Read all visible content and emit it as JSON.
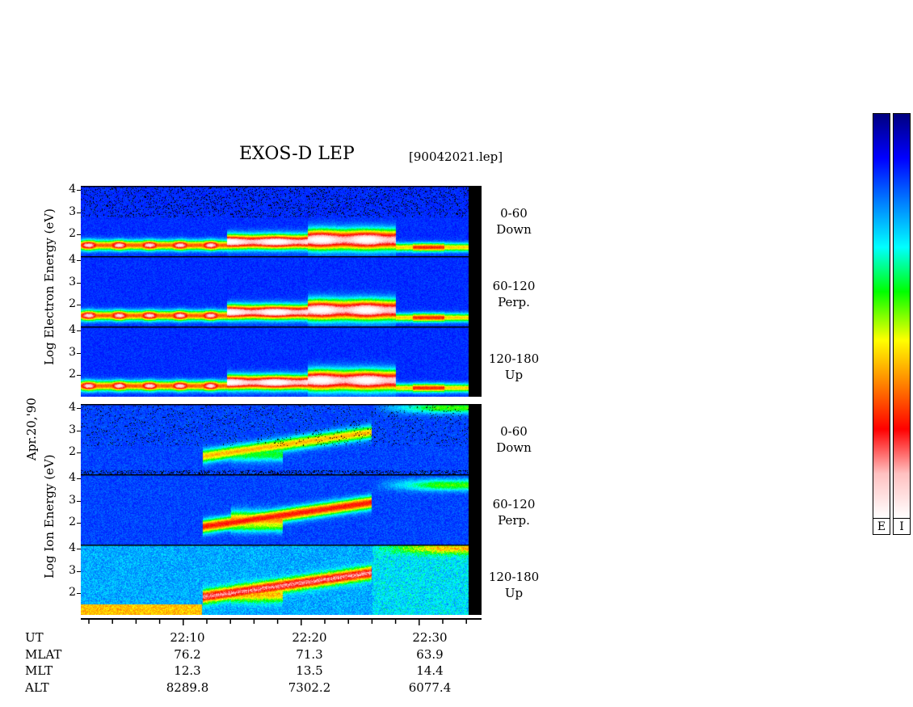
{
  "header": {
    "title": "EXOS-D LEP",
    "file": "[90042021.lep]"
  },
  "date_label": "Apr.20,'90",
  "electron_group": {
    "ylabel": "Log Electron Energy (eV)"
  },
  "ion_group": {
    "ylabel": "Log Ion Energy (eV)"
  },
  "panels": [
    {
      "species": "electron",
      "angle": "0-60",
      "direction": "Down"
    },
    {
      "species": "electron",
      "angle": "60-120",
      "direction": "Perp."
    },
    {
      "species": "electron",
      "angle": "120-180",
      "direction": "Up"
    },
    {
      "species": "ion",
      "angle": "0-60",
      "direction": "Down"
    },
    {
      "species": "ion",
      "angle": "60-120",
      "direction": "Perp."
    },
    {
      "species": "ion",
      "angle": "120-180",
      "direction": "Up"
    }
  ],
  "colorbars": [
    {
      "label": "E"
    },
    {
      "label": "I"
    }
  ],
  "colors": {
    "scale": [
      "#ffffff",
      "#ffc0c0",
      "#ff0000",
      "#ff8000",
      "#ffff00",
      "#00ff00",
      "#00ffff",
      "#0080ff",
      "#0000ff",
      "#000080"
    ]
  },
  "chart_data": {
    "type": "heatmap",
    "title": "EXOS-D LEP",
    "xlabel": "UT",
    "y_ticks": [
      "2",
      "3",
      "4"
    ],
    "ylim": [
      1,
      4.2
    ],
    "x_range": [
      "22:02",
      "22:35"
    ],
    "time_labels": [
      "22:10",
      "22:20",
      "22:30"
    ],
    "ephemeris": [
      {
        "name": "UT",
        "values": [
          "22:10",
          "22:20",
          "22:30"
        ]
      },
      {
        "name": "MLAT",
        "values": [
          "76.2",
          "71.3",
          "63.9"
        ]
      },
      {
        "name": "MLT",
        "values": [
          "12.3",
          "13.5",
          "14.4"
        ]
      },
      {
        "name": "ALT",
        "values": [
          "8289.8",
          "7302.2",
          "6077.4"
        ]
      }
    ]
  }
}
